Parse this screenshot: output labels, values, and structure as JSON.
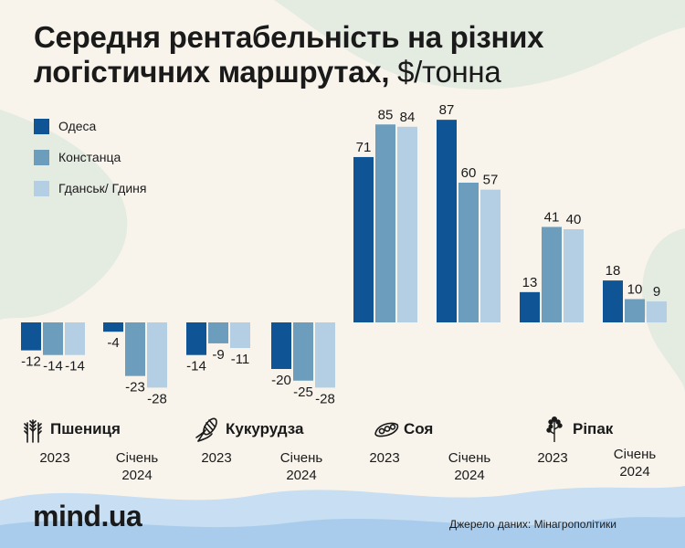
{
  "header": {
    "title": "Середня рентабельність на різних логістичних маршрутах,",
    "unit": "$/тонна"
  },
  "colors": {
    "background": "#f8f4ec",
    "blob": "#e4ebe1",
    "wave_light": "#c8def2",
    "wave_mid": "#a9ccec",
    "text": "#1a1a1a"
  },
  "legend": [
    {
      "label": "Одеса",
      "color": "#0f5596"
    },
    {
      "label": "Констанца",
      "color": "#6c9dbc"
    },
    {
      "label": "Гданськ/ Гдиня",
      "color": "#b4cfe3"
    }
  ],
  "chart_data": {
    "type": "bar",
    "title": "Середня рентабельність на різних логістичних маршрутах, $/тонна",
    "categories": [
      "2023",
      "Січень 2024",
      "2023",
      "Січень 2024",
      "2023",
      "Січень 2024",
      "2023",
      "Січень 2024"
    ],
    "groups": [
      "Пшениця",
      "Кукурудза",
      "Соя",
      "Ріпак"
    ],
    "series": [
      {
        "name": "Одеса",
        "color": "#0f5596",
        "values": [
          -12,
          -4,
          -14,
          -20,
          71,
          87,
          13,
          18
        ]
      },
      {
        "name": "Констанца",
        "color": "#6c9dbc",
        "values": [
          -14,
          -23,
          -9,
          -25,
          85,
          60,
          41,
          10
        ]
      },
      {
        "name": "Гданськ/ Гдиня",
        "color": "#b4cfe3",
        "values": [
          -14,
          -28,
          -11,
          -28,
          84,
          57,
          40,
          9
        ]
      }
    ],
    "legend_position": "top-left",
    "grid": false
  },
  "crops": [
    {
      "name": "Пшениця",
      "icon": "wheat-icon",
      "periods": [
        "2023",
        "Січень\n2024"
      ]
    },
    {
      "name": "Кукурудза",
      "icon": "corn-icon",
      "periods": [
        "2023",
        "Січень\n2024"
      ]
    },
    {
      "name": "Соя",
      "icon": "soybean-icon",
      "periods": [
        "2023",
        "Січень\n2024"
      ]
    },
    {
      "name": "Ріпак",
      "icon": "rapeseed-icon",
      "periods": [
        "2023",
        "Січень\n2024"
      ]
    }
  ],
  "footer": {
    "logo": "mind.ua",
    "source": "Джерело даних: Мінагрополітики"
  }
}
